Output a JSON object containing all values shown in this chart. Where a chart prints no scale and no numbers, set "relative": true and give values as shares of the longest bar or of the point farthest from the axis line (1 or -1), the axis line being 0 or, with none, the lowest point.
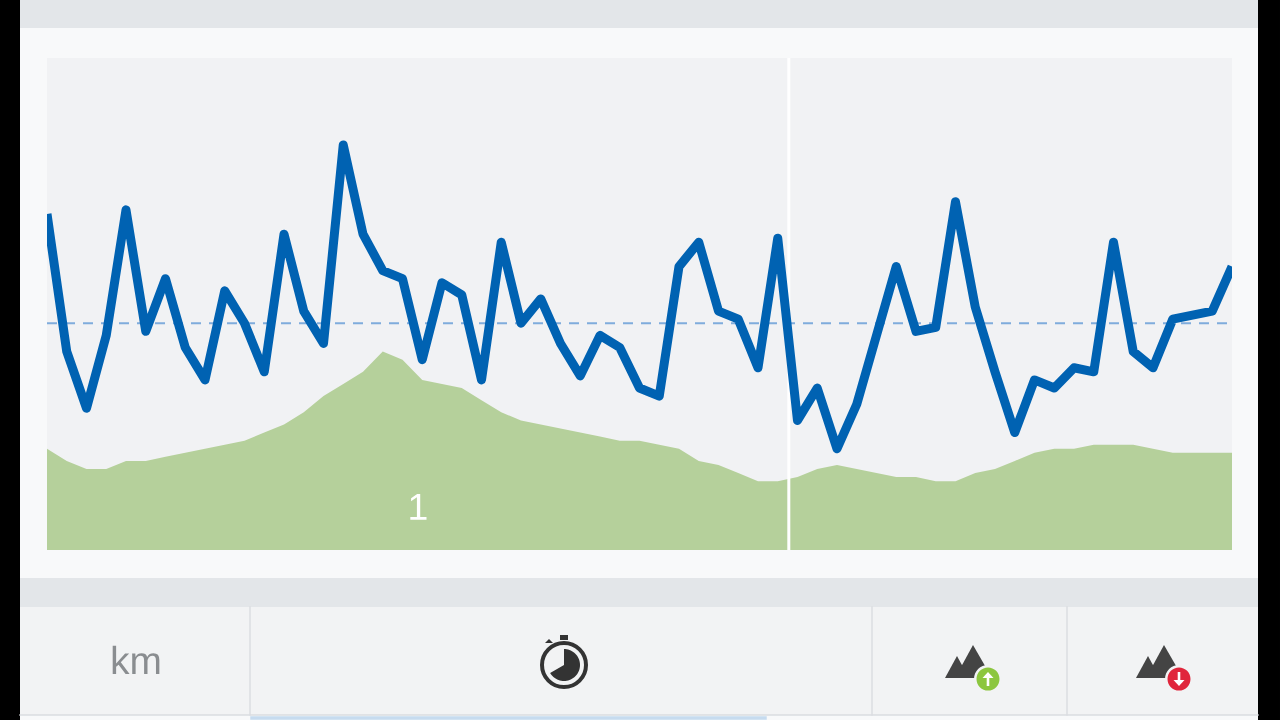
{
  "chart_data": {
    "type": "line",
    "relative": true,
    "categories": [
      null,
      null,
      null,
      null,
      null,
      null,
      null,
      null,
      null,
      null,
      null,
      null,
      null,
      null,
      null,
      null,
      null,
      null,
      null,
      null,
      null,
      null,
      null,
      null,
      null,
      null,
      null,
      null,
      null,
      null,
      null,
      null,
      null,
      null,
      null,
      null,
      null,
      null,
      null,
      null,
      null,
      null,
      null,
      null,
      null,
      null,
      null,
      null,
      null,
      null,
      null,
      null,
      null,
      null,
      null,
      null,
      null,
      null,
      null,
      null,
      null
    ],
    "series": [
      {
        "type": "area",
        "color": "#b5d09b",
        "values": [
          0.25,
          0.22,
          0.2,
          0.2,
          0.22,
          0.22,
          0.23,
          0.24,
          0.25,
          0.26,
          0.27,
          0.29,
          0.31,
          0.34,
          0.38,
          0.41,
          0.44,
          0.49,
          0.47,
          0.42,
          0.41,
          0.4,
          0.37,
          0.34,
          0.32,
          0.31,
          0.3,
          0.29,
          0.28,
          0.27,
          0.27,
          0.26,
          0.25,
          0.22,
          0.21,
          0.19,
          0.17,
          0.17,
          0.18,
          0.2,
          0.21,
          0.2,
          0.19,
          0.18,
          0.18,
          0.17,
          0.17,
          0.19,
          0.2,
          0.22,
          0.24,
          0.25,
          0.25,
          0.26,
          0.26,
          0.26,
          0.25,
          0.24,
          0.24,
          0.24,
          0.24
        ]
      },
      {
        "color": "#0062b2",
        "values": [
          0.83,
          0.49,
          0.35,
          0.53,
          0.84,
          0.54,
          0.67,
          0.5,
          0.42,
          0.64,
          0.56,
          0.44,
          0.78,
          0.59,
          0.51,
          1.0,
          0.78,
          0.69,
          0.67,
          0.47,
          0.66,
          0.63,
          0.42,
          0.76,
          0.56,
          0.62,
          0.51,
          0.43,
          0.53,
          0.5,
          0.4,
          0.38,
          0.7,
          0.76,
          0.59,
          0.57,
          0.45,
          0.77,
          0.32,
          0.4,
          0.25,
          0.36,
          0.53,
          0.7,
          0.54,
          0.55,
          0.86,
          0.6,
          0.44,
          0.29,
          0.42,
          0.4,
          0.45,
          0.44,
          0.76,
          0.49,
          0.45,
          0.57,
          0.58,
          0.59,
          0.7
        ]
      }
    ],
    "ref_lines": [
      {
        "axis": "y",
        "value": 0.56,
        "color": "#7facdc",
        "line_style": "dashed"
      }
    ],
    "annotations": [
      "1",
      "km"
    ]
  }
}
